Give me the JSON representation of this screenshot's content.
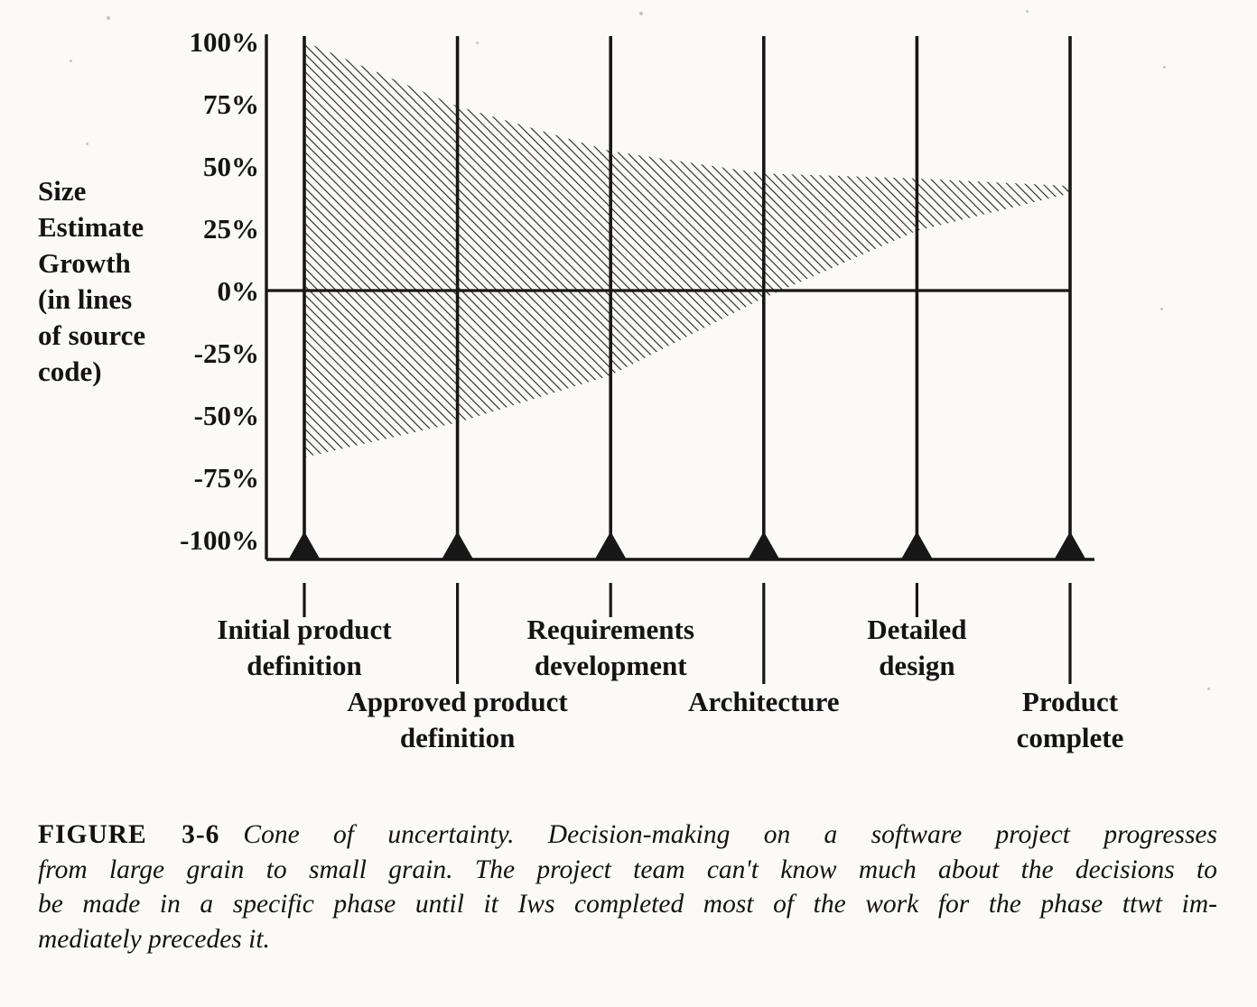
{
  "caption": {
    "label": "FIGURE 3-6",
    "line1": "Cone of uncertainty. Decision-making on a software project progresses",
    "line2": "from large grain to small grain. The project team can't know much about the decisions to",
    "line3": "be made in a specific phase until it Iws completed most of the work for the phase ttwt im-",
    "line4": "mediately precedes it."
  },
  "chart_data": {
    "type": "area",
    "title": "Cone of uncertainty",
    "ylabel": "Size Estimate Growth (in lines of source code)",
    "ylabel_lines": [
      "Size",
      "Estimate",
      "Growth",
      "(in lines",
      "of source",
      "code)"
    ],
    "xlabel": "",
    "ylim": [
      -100,
      100
    ],
    "grid": false,
    "legend": "none",
    "zero_line": true,
    "fill_style": "diagonal-hatch",
    "ink_color": "#171717",
    "y_ticks": [
      {
        "label": "100%",
        "value": 100
      },
      {
        "label": "75%",
        "value": 75
      },
      {
        "label": "50%",
        "value": 50
      },
      {
        "label": "25%",
        "value": 25
      },
      {
        "label": "0%",
        "value": 0
      },
      {
        "label": "-25%",
        "value": -25
      },
      {
        "label": "-50%",
        "value": -50
      },
      {
        "label": "-75%",
        "value": -75
      },
      {
        "label": "-100%",
        "value": -100
      }
    ],
    "x": [
      0,
      1,
      2,
      3,
      4,
      5
    ],
    "milestones": [
      {
        "name": "Initial product definition",
        "lines": [
          "Initial product",
          "definition"
        ],
        "row": 1
      },
      {
        "name": "Approved product definition",
        "lines": [
          "Approved product",
          "definition"
        ],
        "row": 2
      },
      {
        "name": "Requirements development",
        "lines": [
          "Requirements",
          "development"
        ],
        "row": 1
      },
      {
        "name": "Architecture",
        "lines": [
          "Architecture"
        ],
        "row": 2
      },
      {
        "name": "Detailed design",
        "lines": [
          "Detailed",
          "design"
        ],
        "row": 1
      },
      {
        "name": "Product complete",
        "lines": [
          "Product",
          "complete"
        ],
        "row": 2
      }
    ],
    "series": [
      {
        "name": "upper_bound_pct",
        "values": [
          100,
          74,
          56,
          47,
          45,
          42
        ]
      },
      {
        "name": "lower_bound_pct",
        "values": [
          -67,
          -53,
          -34,
          -3,
          24,
          39
        ]
      }
    ]
  }
}
